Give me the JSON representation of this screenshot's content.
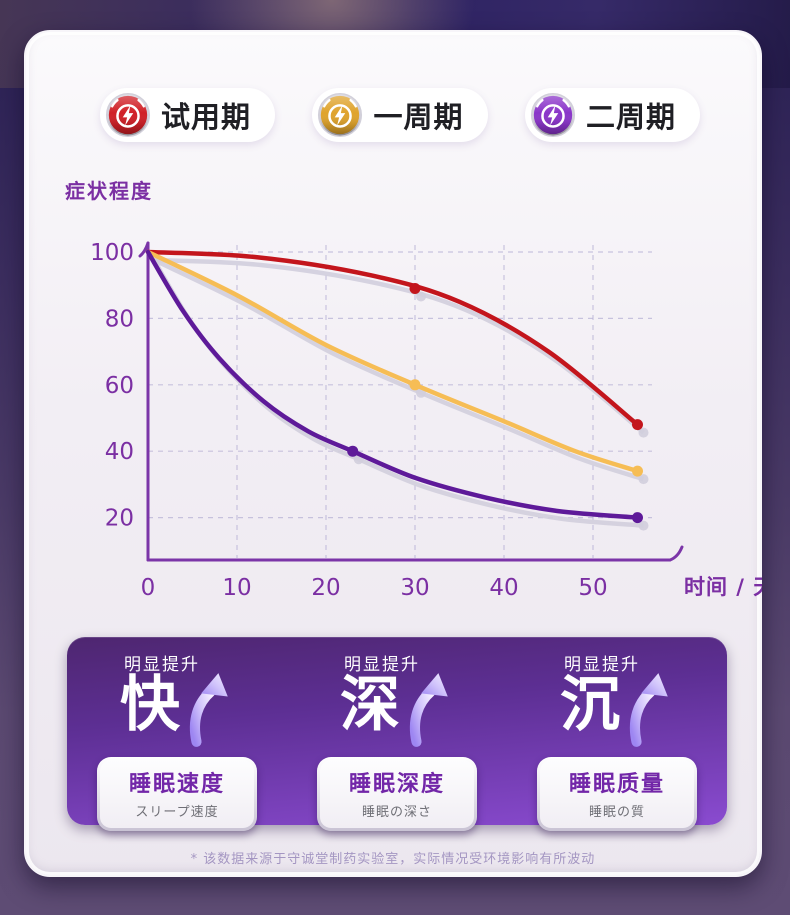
{
  "page": {
    "footnote": "* 该数据来源于守诚堂制药实验室，实际情况受环境影响有所波动"
  },
  "theme": {
    "panel_top": "#4e2670",
    "panel_bottom": "#8a4bd0",
    "axis_color": "#7b2fa3",
    "badge_text_color": "#7226a8",
    "card_bg": "#f2eef4",
    "outer_bg": "#5e4c74"
  },
  "legend": {
    "items": [
      {
        "label": "试用期",
        "color": "#d01f26"
      },
      {
        "label": "一周期",
        "color": "#dfa32c"
      },
      {
        "label": "二周期",
        "color": "#8a35c9"
      }
    ]
  },
  "chart_data": {
    "type": "line",
    "title": "",
    "ylabel": "症状程度",
    "xlabel": "时间 / 天",
    "x_ticks": [
      0,
      10,
      20,
      30,
      40,
      50
    ],
    "y_ticks": [
      100,
      80,
      60,
      40,
      20
    ],
    "xlim": [
      0,
      58
    ],
    "ylim": [
      0,
      110
    ],
    "grid": true,
    "legend_position": "top",
    "series": [
      {
        "name": "试用期",
        "color": "#c3151c",
        "points": [
          [
            0,
            100
          ],
          [
            12,
            98.5
          ],
          [
            25,
            93
          ],
          [
            35,
            85
          ],
          [
            45,
            70
          ],
          [
            55,
            48
          ]
        ],
        "markers": [
          [
            30,
            89
          ],
          [
            55,
            48
          ]
        ]
      },
      {
        "name": "一周期",
        "color": "#f6bd55",
        "points": [
          [
            0,
            100
          ],
          [
            10,
            87
          ],
          [
            20,
            72
          ],
          [
            30,
            60
          ],
          [
            40,
            49
          ],
          [
            48,
            40
          ],
          [
            55,
            34
          ]
        ],
        "markers": [
          [
            30,
            60
          ],
          [
            55,
            34
          ]
        ]
      },
      {
        "name": "二周期",
        "color": "#5e1a99",
        "points": [
          [
            0,
            100
          ],
          [
            4,
            82
          ],
          [
            8,
            68
          ],
          [
            13,
            55
          ],
          [
            18,
            46
          ],
          [
            23,
            40
          ],
          [
            30,
            32
          ],
          [
            38,
            26
          ],
          [
            46,
            22
          ],
          [
            55,
            20
          ]
        ],
        "markers": [
          [
            23,
            40
          ],
          [
            55,
            20
          ]
        ]
      }
    ]
  },
  "benefits": {
    "items": [
      {
        "tag": "明显提升",
        "big": "快",
        "name": "睡眠速度",
        "sub": "スリープ速度"
      },
      {
        "tag": "明显提升",
        "big": "深",
        "name": "睡眠深度",
        "sub": "睡眠の深さ"
      },
      {
        "tag": "明显提升",
        "big": "沉",
        "name": "睡眠质量",
        "sub": "睡眠の質"
      }
    ]
  }
}
